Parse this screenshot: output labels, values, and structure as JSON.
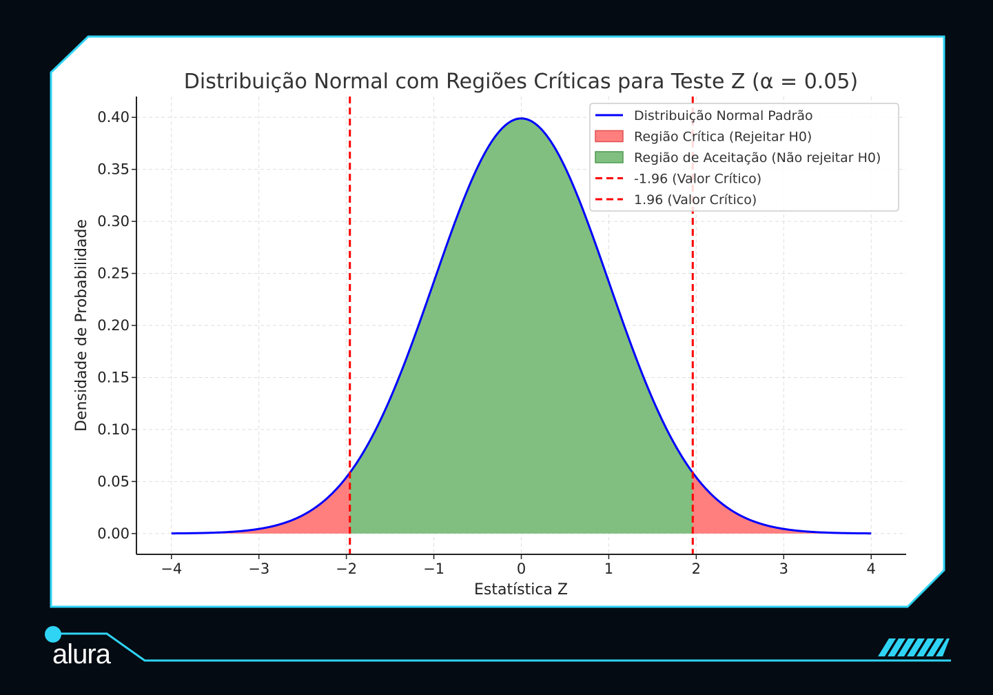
{
  "brand": {
    "logo_text": "alura",
    "accent_color": "#2fd4f5"
  },
  "chart_data": {
    "type": "area",
    "title": "Distribuição Normal com Regiões Críticas para Teste Z (α = 0.05)",
    "xlabel": "Estatística Z",
    "ylabel": "Densidade de Probabilidade",
    "xlim": [
      -4.4,
      4.4
    ],
    "ylim": [
      -0.02,
      0.42
    ],
    "x_ticks": [
      -4,
      -3,
      -2,
      -1,
      0,
      1,
      2,
      3,
      4
    ],
    "x_tick_labels": [
      "−4",
      "−3",
      "−2",
      "−1",
      "0",
      "1",
      "2",
      "3",
      "4"
    ],
    "y_ticks": [
      0.0,
      0.05,
      0.1,
      0.15,
      0.2,
      0.25,
      0.3,
      0.35,
      0.4
    ],
    "y_tick_labels": [
      "0.00",
      "0.05",
      "0.10",
      "0.15",
      "0.20",
      "0.25",
      "0.30",
      "0.35",
      "0.40"
    ],
    "grid": true,
    "legend_position": "top-right",
    "curve": {
      "name": "Distribuição Normal Padrão",
      "mean": 0,
      "sd": 1,
      "x_range": [
        -4,
        4
      ],
      "color": "#0000ff"
    },
    "regions": [
      {
        "name": "Região Crítica (Rejeitar H0)",
        "x_range": [
          -4,
          -1.96
        ],
        "color": "#ff7f7f"
      },
      {
        "name": "Região de Aceitação (Não rejeitar H0)",
        "x_range": [
          -1.96,
          1.96
        ],
        "color": "#80bf80"
      },
      {
        "name": "",
        "x_range": [
          1.96,
          4
        ],
        "color": "#ff7f7f"
      }
    ],
    "critical_lines": [
      {
        "name": "-1.96 (Valor Crítico)",
        "x": -1.96,
        "color": "#ff0000"
      },
      {
        "name": "1.96 (Valor Crítico)",
        "x": 1.96,
        "color": "#ff0000"
      }
    ]
  }
}
